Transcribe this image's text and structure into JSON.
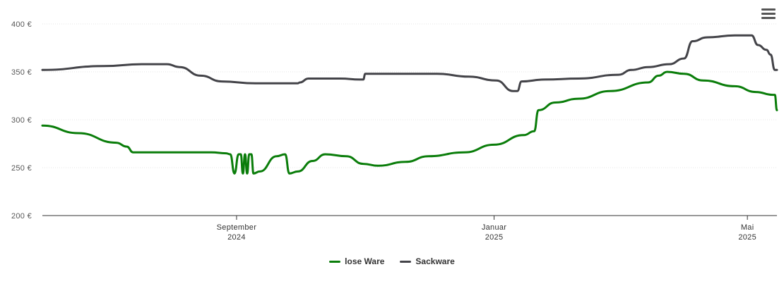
{
  "chart_data": {
    "type": "line",
    "ylim": [
      200,
      400
    ],
    "yticks": [
      200,
      250,
      300,
      350,
      400
    ],
    "ytick_labels": [
      "200 €",
      "250 €",
      "300 €",
      "350 €",
      "400 €"
    ],
    "xrange": [
      "2024-06-01",
      "2025-05-15"
    ],
    "xticks": [
      {
        "date": "2024-09-01",
        "line1": "September",
        "line2": "2024"
      },
      {
        "date": "2025-01-01",
        "line1": "Januar",
        "line2": "2025"
      },
      {
        "date": "2025-05-01",
        "line1": "Mai",
        "line2": "2025"
      }
    ],
    "grid": true,
    "legend_position": "bottom-center",
    "series": [
      {
        "name": "lose Ware",
        "color": "#0a7d0a",
        "points": [
          [
            "2024-06-01",
            294
          ],
          [
            "2024-06-18",
            286
          ],
          [
            "2024-07-06",
            276
          ],
          [
            "2024-07-11",
            272
          ],
          [
            "2024-07-14",
            266
          ],
          [
            "2024-08-05",
            266
          ],
          [
            "2024-08-20",
            266
          ],
          [
            "2024-08-27",
            265
          ],
          [
            "2024-08-29",
            264
          ],
          [
            "2024-08-31",
            244
          ],
          [
            "2024-09-02",
            264
          ],
          [
            "2024-09-03",
            264
          ],
          [
            "2024-09-04",
            244
          ],
          [
            "2024-09-05",
            264
          ],
          [
            "2024-09-06",
            244
          ],
          [
            "2024-09-07",
            264
          ],
          [
            "2024-09-08",
            264
          ],
          [
            "2024-09-09",
            244
          ],
          [
            "2024-09-12",
            246
          ],
          [
            "2024-09-20",
            262
          ],
          [
            "2024-09-24",
            264
          ],
          [
            "2024-09-26",
            244
          ],
          [
            "2024-09-30",
            246
          ],
          [
            "2024-10-07",
            257
          ],
          [
            "2024-10-13",
            264
          ],
          [
            "2024-10-23",
            262
          ],
          [
            "2024-10-31",
            254
          ],
          [
            "2024-11-07",
            252
          ],
          [
            "2024-11-20",
            256
          ],
          [
            "2024-12-01",
            262
          ],
          [
            "2024-12-18",
            266
          ],
          [
            "2025-01-01",
            274
          ],
          [
            "2025-01-15",
            284
          ],
          [
            "2025-01-20",
            288
          ],
          [
            "2025-01-22",
            310
          ],
          [
            "2025-01-30",
            318
          ],
          [
            "2025-02-10",
            322
          ],
          [
            "2025-02-25",
            330
          ],
          [
            "2025-03-15",
            339
          ],
          [
            "2025-03-20",
            346
          ],
          [
            "2025-03-24",
            350
          ],
          [
            "2025-04-01",
            348
          ],
          [
            "2025-04-10",
            341
          ],
          [
            "2025-04-25",
            335
          ],
          [
            "2025-05-05",
            329
          ],
          [
            "2025-05-13",
            326
          ],
          [
            "2025-05-14",
            326
          ],
          [
            "2025-05-15",
            310
          ]
        ]
      },
      {
        "name": "Sackware",
        "color": "#434348",
        "points": [
          [
            "2024-06-01",
            352
          ],
          [
            "2024-06-30",
            356
          ],
          [
            "2024-07-18",
            358
          ],
          [
            "2024-07-30",
            358
          ],
          [
            "2024-08-05",
            355
          ],
          [
            "2024-08-15",
            346
          ],
          [
            "2024-08-25",
            340
          ],
          [
            "2024-09-10",
            338
          ],
          [
            "2024-09-30",
            338
          ],
          [
            "2024-10-01",
            339
          ],
          [
            "2024-10-05",
            343
          ],
          [
            "2024-10-20",
            343
          ],
          [
            "2024-10-30",
            342
          ],
          [
            "2024-10-31",
            342
          ],
          [
            "2024-11-01",
            348
          ],
          [
            "2024-11-20",
            348
          ],
          [
            "2024-12-05",
            348
          ],
          [
            "2024-12-20",
            345
          ],
          [
            "2025-01-02",
            341
          ],
          [
            "2025-01-10",
            330
          ],
          [
            "2025-01-12",
            330
          ],
          [
            "2025-01-14",
            340
          ],
          [
            "2025-01-25",
            342
          ],
          [
            "2025-02-10",
            343
          ],
          [
            "2025-03-01",
            347
          ],
          [
            "2025-03-07",
            352
          ],
          [
            "2025-03-15",
            355
          ],
          [
            "2025-03-25",
            358
          ],
          [
            "2025-04-01",
            364
          ],
          [
            "2025-04-05",
            382
          ],
          [
            "2025-04-12",
            386
          ],
          [
            "2025-04-25",
            388
          ],
          [
            "2025-05-01",
            388
          ],
          [
            "2025-05-03",
            388
          ],
          [
            "2025-05-06",
            378
          ],
          [
            "2025-05-10",
            373
          ],
          [
            "2025-05-12",
            368
          ],
          [
            "2025-05-14",
            352
          ],
          [
            "2025-05-15",
            352
          ]
        ]
      }
    ]
  },
  "menu": {
    "icon": "hamburger-menu-icon"
  }
}
